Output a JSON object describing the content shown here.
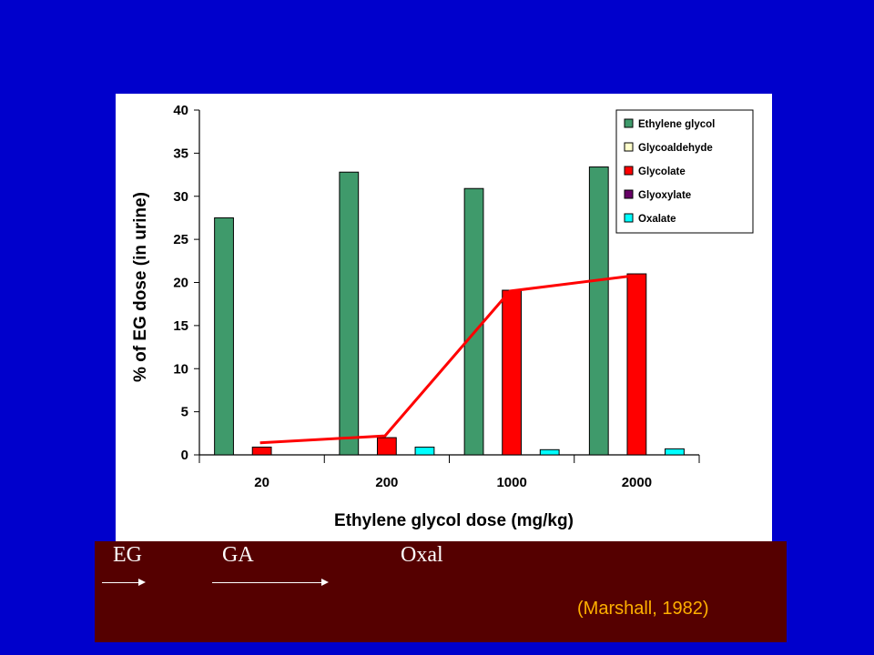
{
  "chart_data": {
    "type": "bar",
    "title": "",
    "xlabel": "Ethylene glycol dose (mg/kg)",
    "ylabel": "% of EG dose (in urine)",
    "ylim": [
      0,
      40
    ],
    "yticks": [
      "0",
      "5",
      "10",
      "15",
      "20",
      "25",
      "30",
      "35",
      "40"
    ],
    "categories": [
      "20",
      "200",
      "1000",
      "2000"
    ],
    "series": [
      {
        "name": "Ethylene glycol",
        "color": "#3f9a6b",
        "values": [
          27.5,
          32.8,
          30.9,
          33.4
        ]
      },
      {
        "name": "Glycoaldehyde",
        "color": "#ffffcc",
        "values": [
          0,
          0,
          0,
          0
        ]
      },
      {
        "name": "Glycolate",
        "color": "#ff0000",
        "values": [
          0.9,
          2.0,
          19.1,
          21.0
        ]
      },
      {
        "name": "Glyoxylate",
        "color": "#660066",
        "values": [
          0,
          0,
          0,
          0
        ]
      },
      {
        "name": "Oxalate",
        "color": "#00ffff",
        "values": [
          0,
          0.9,
          0.6,
          0.7
        ]
      }
    ],
    "trend_line": {
      "color": "#ff0000",
      "values": [
        1.4,
        2.2,
        19.0,
        20.8
      ]
    },
    "grid": false,
    "legend_position": "top-right"
  },
  "flow": {
    "label_1": "EG",
    "label_2": "GA",
    "label_3": "Oxal"
  },
  "citation": "(Marshall, 1982)"
}
